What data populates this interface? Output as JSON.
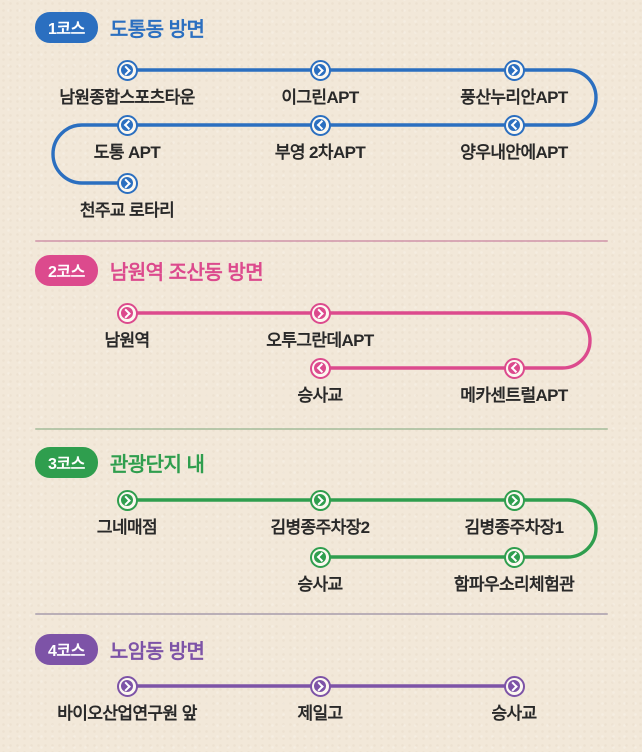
{
  "colors": {
    "background": "#f2e8d9",
    "station_label": "#292929",
    "node_fill": "#fcf8f0"
  },
  "courses": [
    {
      "badge": "1코스",
      "title": "도통동 방면",
      "color": "#2b6fc0",
      "divider_color": null,
      "stations": [
        {
          "name": "남원종합스포츠타운",
          "row": 0,
          "col": 0,
          "arrow": "right"
        },
        {
          "name": "이그린APT",
          "row": 0,
          "col": 1,
          "arrow": "right"
        },
        {
          "name": "풍산누리안APT",
          "row": 0,
          "col": 2,
          "arrow": "right"
        },
        {
          "name": "양우내안에APT",
          "row": 1,
          "col": 2,
          "arrow": "left"
        },
        {
          "name": "부영 2차APT",
          "row": 1,
          "col": 1,
          "arrow": "left"
        },
        {
          "name": "도통 APT",
          "row": 1,
          "col": 0,
          "arrow": "left"
        },
        {
          "name": "천주교 로타리",
          "row": 2,
          "col": 0,
          "arrow": "right"
        }
      ]
    },
    {
      "badge": "2코스",
      "title": "남원역 조산동 방면",
      "color": "#dc4a8d",
      "divider_color": "#cf93a8",
      "stations": [
        {
          "name": "남원역",
          "row": 0,
          "col": 0,
          "arrow": "right"
        },
        {
          "name": "오투그란데APT",
          "row": 0,
          "col": 1,
          "arrow": "right"
        },
        {
          "name": "메카센트럴APT",
          "row": 1,
          "col": 2,
          "arrow": "left"
        },
        {
          "name": "승사교",
          "row": 1,
          "col": 1,
          "arrow": "left"
        }
      ]
    },
    {
      "badge": "3코스",
      "title": "관광단지 내",
      "color": "#2f9e4e",
      "divider_color": "#a3bb98",
      "stations": [
        {
          "name": "그네매점",
          "row": 0,
          "col": 0,
          "arrow": "right"
        },
        {
          "name": "김병종주차장2",
          "row": 0,
          "col": 1,
          "arrow": "right"
        },
        {
          "name": "김병종주차장1",
          "row": 0,
          "col": 2,
          "arrow": "right"
        },
        {
          "name": "함파우소리체험관",
          "row": 1,
          "col": 2,
          "arrow": "left"
        },
        {
          "name": "승사교",
          "row": 1,
          "col": 1,
          "arrow": "left"
        }
      ]
    },
    {
      "badge": "4코스",
      "title": "노암동 방면",
      "color": "#7d53a7",
      "divider_color": "#a79cab",
      "stations": [
        {
          "name": "바이오산업연구원 앞",
          "row": 0,
          "col": 0,
          "arrow": "right"
        },
        {
          "name": "제일고",
          "row": 0,
          "col": 1,
          "arrow": "right"
        },
        {
          "name": "승사교",
          "row": 0,
          "col": 2,
          "arrow": "right"
        }
      ]
    }
  ]
}
